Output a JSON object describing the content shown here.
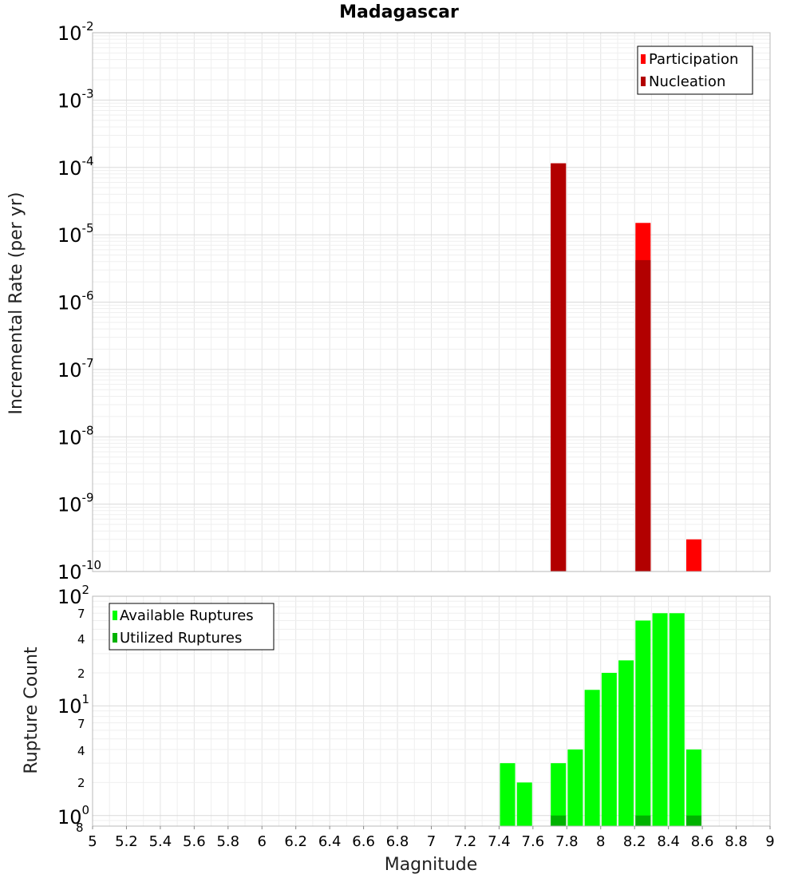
{
  "chart_data": [
    {
      "type": "bar",
      "title": "Madagascar",
      "ylabel": "Incremental Rate (per yr)",
      "yscale": "log",
      "ylim": [
        1e-10,
        0.01
      ],
      "xlim": [
        5,
        9
      ],
      "y_ticks": [
        "-10",
        "-9",
        "-8",
        "-7",
        "-6",
        "-5",
        "-4",
        "-3",
        "-2"
      ],
      "y_tick_base": "10",
      "grid": true,
      "legend": {
        "placement": "top-right"
      },
      "series": [
        {
          "name": "Participation",
          "color": "#ff0000",
          "x": [
            7.75,
            8.25,
            8.55
          ],
          "values": [
            0.000115,
            1.5e-05,
            3e-10
          ]
        },
        {
          "name": "Nucleation",
          "color": "#b20000",
          "x": [
            7.75,
            8.25
          ],
          "values": [
            0.000115,
            4.2e-06
          ]
        }
      ]
    },
    {
      "type": "bar",
      "xlabel": "Magnitude",
      "ylabel": "Rupture Count",
      "yscale": "log",
      "ylim": [
        0.8,
        100
      ],
      "x_ticks": [
        "5",
        "5.2",
        "5.4",
        "5.6",
        "5.8",
        "6",
        "6.2",
        "6.4",
        "6.6",
        "6.8",
        "7",
        "7.2",
        "7.4",
        "7.6",
        "7.8",
        "8",
        "8.2",
        "8.4",
        "8.6",
        "8.8",
        "9"
      ],
      "y_tick_labels": [
        {
          "kind": "base",
          "base": "10",
          "exp": "0"
        },
        {
          "kind": "minor",
          "label": "8"
        },
        {
          "kind": "minor",
          "label": "2"
        },
        {
          "kind": "minor",
          "label": "4"
        },
        {
          "kind": "minor",
          "label": "7"
        },
        {
          "kind": "base",
          "base": "10",
          "exp": "1"
        },
        {
          "kind": "minor",
          "label": "2"
        },
        {
          "kind": "minor",
          "label": "4"
        },
        {
          "kind": "minor",
          "label": "7"
        },
        {
          "kind": "base",
          "base": "10",
          "exp": "2"
        }
      ],
      "grid": true,
      "legend": {
        "placement": "top-left"
      },
      "series": [
        {
          "name": "Available Ruptures",
          "color": "#00ff00",
          "x": [
            7.45,
            7.55,
            7.75,
            7.85,
            7.95,
            8.05,
            8.15,
            8.25,
            8.35,
            8.45,
            8.55
          ],
          "values": [
            3,
            2,
            3,
            4,
            14,
            20,
            26,
            60,
            70,
            70,
            4
          ]
        },
        {
          "name": "Utilized Ruptures",
          "color": "#00b200",
          "x": [
            7.75,
            8.25,
            8.55
          ],
          "values": [
            1,
            1,
            1
          ]
        }
      ]
    }
  ]
}
